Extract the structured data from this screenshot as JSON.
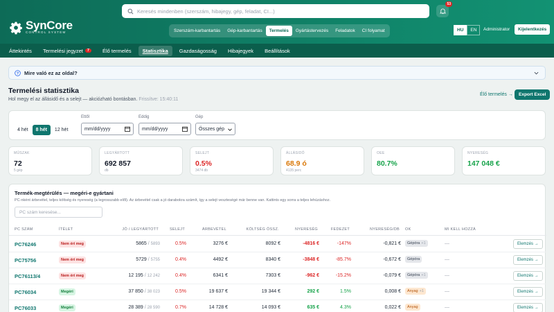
{
  "app": {
    "name": "SynCore",
    "subtitle": "CONTROL SYSTEM"
  },
  "search": {
    "placeholder": "Keresés mindenben (szerszám, hibajegy, gép, feladat, CI...)"
  },
  "notifications": {
    "count": "53"
  },
  "module_nav": [
    "Szerszám-karbantartás",
    "Gép-karbantartás",
    "Termelés",
    "Gyártástervezés",
    "Feladatok",
    "CI folyamat"
  ],
  "module_active": "Termelés",
  "lang": {
    "hu": "HU",
    "en": "EN",
    "active": "HU"
  },
  "user": {
    "name": "Administrator",
    "logout": "Kijelentkezés"
  },
  "tabs": [
    {
      "label": "Áttekintés"
    },
    {
      "label": "Termelési jegyzet",
      "count": "7"
    },
    {
      "label": "Élő termelés"
    },
    {
      "label": "Statisztika",
      "active": true
    },
    {
      "label": "Gazdaságosság"
    },
    {
      "label": "Hibajegyek"
    },
    {
      "label": "Beállítások"
    }
  ],
  "help": {
    "label": "Mire való ez az oldal?"
  },
  "page": {
    "title": "Termelési statisztika",
    "subtitle": "Hol megy el az állásidő és a selejt — akciózható bontásban.",
    "refreshed": "Frissítve: 15:40:11",
    "live_link": "Élő termelés →",
    "export": "Export Excel"
  },
  "filters": {
    "periods": [
      "4 hét",
      "8 hét",
      "12 hét"
    ],
    "period_active": "8 hét",
    "from_label": "Ettől",
    "from_placeholder": "mm/dd/yyyy",
    "to_label": "Eddig",
    "to_placeholder": "mm/dd/yyyy",
    "machine_label": "Gép",
    "machine_value": "Összes gép"
  },
  "kpis": [
    {
      "label": "MŰSZAK",
      "value": "72",
      "sub": "5 gép",
      "color": "#111827"
    },
    {
      "label": "LEGYÁRTOTT",
      "value": "692 857",
      "sub": "db",
      "color": "#111827"
    },
    {
      "label": "SELEJT",
      "value": "0.5%",
      "sub": "3474 db",
      "color": "#dc2626"
    },
    {
      "label": "ÁLLÁSIDŐ",
      "value": "68.9 ó",
      "sub": "4135 perc",
      "color": "#d97706"
    },
    {
      "label": "OEE",
      "value": "80.7%",
      "sub": "",
      "color": "#16a34a"
    },
    {
      "label": "NYERESÉG",
      "value": "147 048 €",
      "sub": "",
      "color": "#16a34a"
    }
  ],
  "table": {
    "title": "Termék-megtérülés — megéri-e gyártani",
    "subtitle": "PC-nként árbevétel, teljes költség és nyereség (a legrosszabb elől). Az árbevétel csak a jó darabokra számít, így a selejt veszteségé már benne van. Kattints egy sorra a teljes lehúzáshoz.",
    "search_placeholder": "PC szám keresése...",
    "headers": [
      "PC SZÁM",
      "ÍTÉLET",
      "JÓ / LEGYÁRTOTT",
      "SELEJT",
      "ÁRBEVÉTEL",
      "KÖLTSÉG ÖSSZ.",
      "NYERESÉG",
      "FEDEZET",
      "NYERESÉG/DB",
      "OK",
      "MI KELL HOZZÁ"
    ],
    "rows": [
      {
        "pc": "PC76246",
        "verdict": "Nem éri meg",
        "verdict_type": "bad",
        "good": "5865",
        "made": "5893",
        "scrap": "0.5%",
        "revenue": "3276 €",
        "cost": "8092 €",
        "profit": "-4816 €",
        "profit_type": "neg",
        "margin": "-147%",
        "margin_type": "neg",
        "per_unit": "-0,821 €",
        "ok": "Gépóra",
        "ok_extra": "+1",
        "ok_type": "gray",
        "need": "—",
        "action": "Elemzés →"
      },
      {
        "pc": "PC75756",
        "verdict": "Nem éri meg",
        "verdict_type": "bad",
        "good": "5729",
        "made": "5755",
        "scrap": "0.4%",
        "revenue": "4492 €",
        "cost": "8340 €",
        "profit": "-3848 €",
        "profit_type": "neg",
        "margin": "-85.7%",
        "margin_type": "neg",
        "per_unit": "-0,672 €",
        "ok": "Gépóra",
        "ok_extra": "",
        "ok_type": "gray",
        "need": "—",
        "action": "Elemzés →"
      },
      {
        "pc": "PC76113/4",
        "verdict": "Nem éri meg",
        "verdict_type": "bad",
        "good": "12 195",
        "made": "12 242",
        "scrap": "0.4%",
        "revenue": "6341 €",
        "cost": "7303 €",
        "profit": "-962 €",
        "profit_type": "neg",
        "margin": "-15.2%",
        "margin_type": "neg",
        "per_unit": "-0,079 €",
        "ok": "Gépóra",
        "ok_extra": "+1",
        "ok_type": "gray",
        "need": "—",
        "action": "Elemzés →"
      },
      {
        "pc": "PC76034",
        "verdict": "Megéri",
        "verdict_type": "good",
        "good": "37 850",
        "made": "38 023",
        "scrap": "0.5%",
        "revenue": "19 637 €",
        "cost": "19 344 €",
        "profit": "292 €",
        "profit_type": "pos",
        "margin": "1.5%",
        "margin_type": "pos",
        "per_unit": "0,008 €",
        "ok": "Anyag",
        "ok_extra": "+1",
        "ok_type": "org",
        "need": "—",
        "action": "Elemzés →"
      },
      {
        "pc": "PC76033",
        "verdict": "Megéri",
        "verdict_type": "good",
        "good": "28 389",
        "made": "28 590",
        "scrap": "0.7%",
        "revenue": "14 728 €",
        "cost": "14 093 €",
        "profit": "635 €",
        "profit_type": "pos",
        "margin": "4.3%",
        "margin_type": "pos",
        "per_unit": "0,022 €",
        "ok": "Anyag",
        "ok_extra": "",
        "ok_type": "org",
        "need": "—",
        "action": "Elemzés →"
      }
    ]
  }
}
